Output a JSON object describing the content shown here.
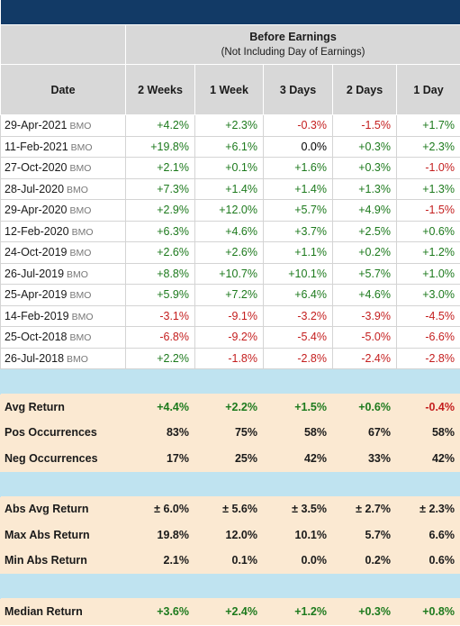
{
  "header": {
    "title": "Before Earnings",
    "subtitle": "(Not Including Day of Earnings)",
    "columns": [
      "Date",
      "2 Weeks",
      "1 Week",
      "3 Days",
      "2 Days",
      "1 Day"
    ]
  },
  "rows": [
    {
      "date": "29-Apr-2021",
      "src": "BMO",
      "values": [
        "+4.2%",
        "+2.3%",
        "-0.3%",
        "-1.5%",
        "+1.7%"
      ]
    },
    {
      "date": "11-Feb-2021",
      "src": "BMO",
      "values": [
        "+19.8%",
        "+6.1%",
        "0.0%",
        "+0.3%",
        "+2.3%"
      ]
    },
    {
      "date": "27-Oct-2020",
      "src": "BMO",
      "values": [
        "+2.1%",
        "+0.1%",
        "+1.6%",
        "+0.3%",
        "-1.0%"
      ]
    },
    {
      "date": "28-Jul-2020",
      "src": "BMO",
      "values": [
        "+7.3%",
        "+1.4%",
        "+1.4%",
        "+1.3%",
        "+1.3%"
      ]
    },
    {
      "date": "29-Apr-2020",
      "src": "BMO",
      "values": [
        "+2.9%",
        "+12.0%",
        "+5.7%",
        "+4.9%",
        "-1.5%"
      ]
    },
    {
      "date": "12-Feb-2020",
      "src": "BMO",
      "values": [
        "+6.3%",
        "+4.6%",
        "+3.7%",
        "+2.5%",
        "+0.6%"
      ]
    },
    {
      "date": "24-Oct-2019",
      "src": "BMO",
      "values": [
        "+2.6%",
        "+2.6%",
        "+1.1%",
        "+0.2%",
        "+1.2%"
      ]
    },
    {
      "date": "26-Jul-2019",
      "src": "BMO",
      "values": [
        "+8.8%",
        "+10.7%",
        "+10.1%",
        "+5.7%",
        "+1.0%"
      ]
    },
    {
      "date": "25-Apr-2019",
      "src": "BMO",
      "values": [
        "+5.9%",
        "+7.2%",
        "+6.4%",
        "+4.6%",
        "+3.0%"
      ]
    },
    {
      "date": "14-Feb-2019",
      "src": "BMO",
      "values": [
        "-3.1%",
        "-9.1%",
        "-3.2%",
        "-3.9%",
        "-4.5%"
      ]
    },
    {
      "date": "25-Oct-2018",
      "src": "BMO",
      "values": [
        "-6.8%",
        "-9.2%",
        "-5.4%",
        "-5.0%",
        "-6.6%"
      ]
    },
    {
      "date": "26-Jul-2018",
      "src": "BMO",
      "values": [
        "+2.2%",
        "-1.8%",
        "-2.8%",
        "-2.4%",
        "-2.8%"
      ]
    }
  ],
  "stats_group1": [
    {
      "label": "Avg Return",
      "values": [
        "+4.4%",
        "+2.2%",
        "+1.5%",
        "+0.6%",
        "-0.4%"
      ]
    },
    {
      "label": "Pos Occurrences",
      "values": [
        "83%",
        "75%",
        "58%",
        "67%",
        "58%"
      ]
    },
    {
      "label": "Neg Occurrences",
      "values": [
        "17%",
        "25%",
        "42%",
        "33%",
        "42%"
      ]
    }
  ],
  "stats_group2": [
    {
      "label": "Abs Avg Return",
      "values": [
        "± 6.0%",
        "± 5.6%",
        "± 3.5%",
        "± 2.7%",
        "± 2.3%"
      ]
    },
    {
      "label": "Max Abs Return",
      "values": [
        "19.8%",
        "12.0%",
        "10.1%",
        "5.7%",
        "6.6%"
      ]
    },
    {
      "label": "Min Abs Return",
      "values": [
        "2.1%",
        "0.1%",
        "0.0%",
        "0.2%",
        "0.6%"
      ]
    }
  ],
  "stats_group3": [
    {
      "label": "Median Return",
      "values": [
        "+3.6%",
        "+2.4%",
        "+1.2%",
        "+0.3%",
        "+0.8%"
      ]
    }
  ],
  "colors": {
    "positive": "#1d7a1d",
    "negative": "#c41e1e",
    "bar": "#123a66",
    "header": "#d8d8d8",
    "stat_bg": "#fbe9d2",
    "spacer": "#bfe3f0"
  }
}
